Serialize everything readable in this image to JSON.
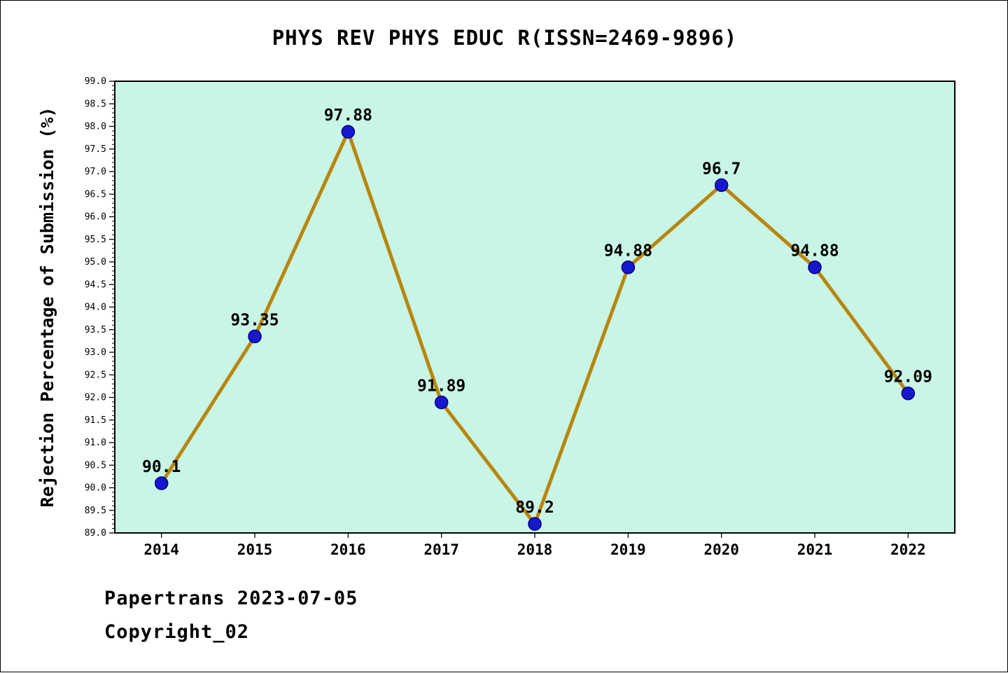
{
  "chart_data": {
    "type": "line",
    "title": "PHYS REV PHYS EDUC R(ISSN=2469-9896)",
    "xlabel": "",
    "ylabel": "Rejection Percentage of Submission (%)",
    "categories": [
      2014,
      2015,
      2016,
      2017,
      2018,
      2019,
      2020,
      2021,
      2022
    ],
    "values": [
      90.1,
      93.35,
      97.88,
      91.89,
      89.2,
      94.88,
      96.7,
      94.88,
      92.09
    ],
    "point_labels": [
      "90.1",
      "93.35",
      "97.88",
      "91.89",
      "89.2",
      "94.88",
      "96.7",
      "94.88",
      "92.09"
    ],
    "ylim": [
      89.0,
      99.0
    ],
    "ytick_step": 0.5,
    "ytick_minor_step": 0.1,
    "grid": false,
    "legend": "none",
    "colors": {
      "line": "#b8860b",
      "marker_fill": "#1717cd",
      "marker_edge": "#00008b",
      "plot_bg": "#c9f5e6",
      "page_bg": "#ffffff",
      "axis": "#000000",
      "text": "#000000"
    }
  },
  "footer": {
    "line1": "Papertrans 2023-07-05",
    "line2": "Copyright_02"
  }
}
